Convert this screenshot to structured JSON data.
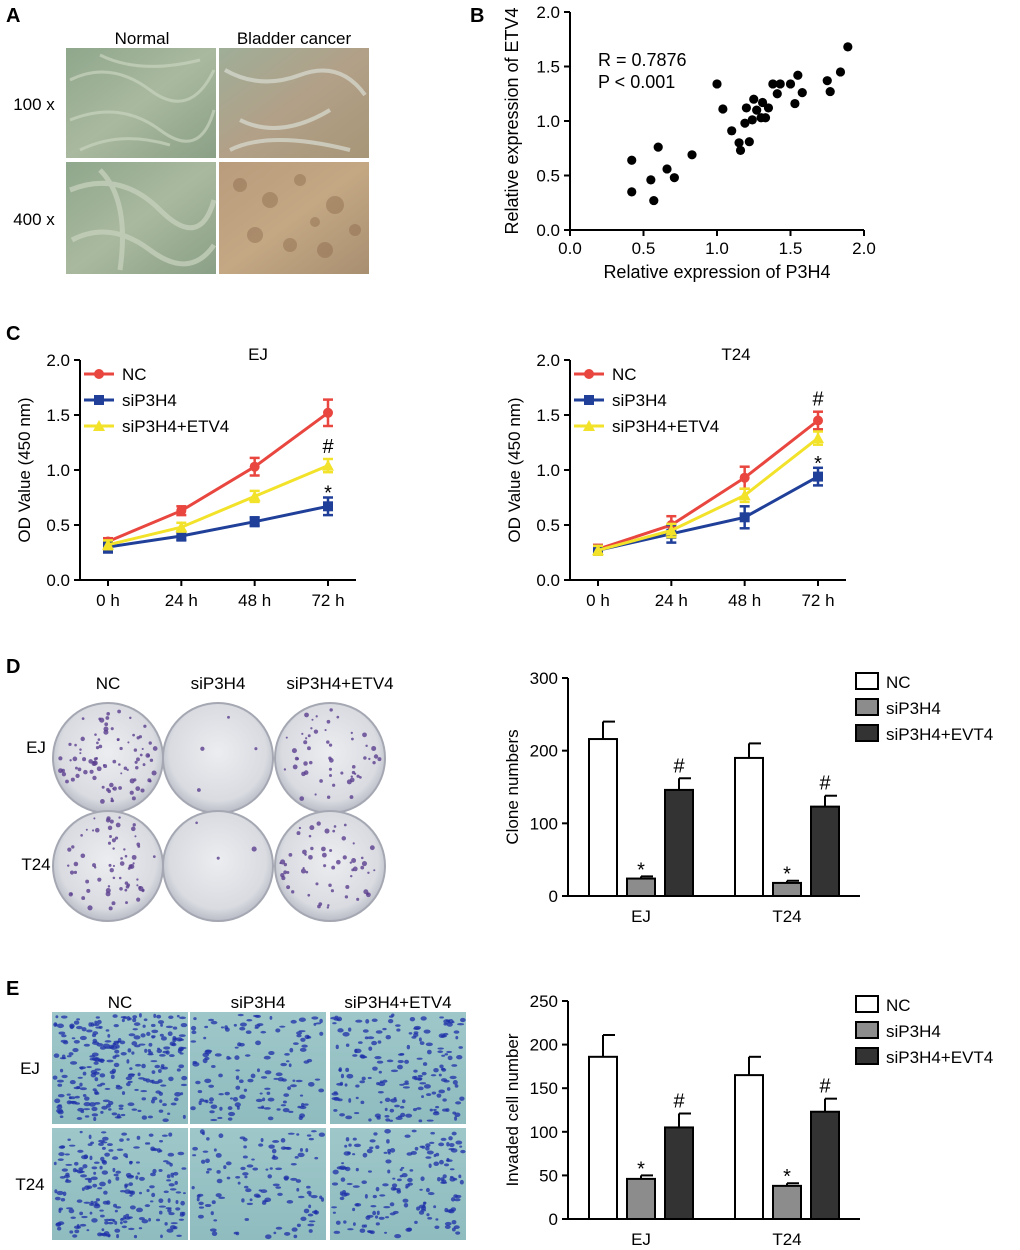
{
  "panel_labels": {
    "A": "A",
    "B": "B",
    "C": "C",
    "D": "D",
    "E": "E"
  },
  "panelA": {
    "col_labels": [
      "Normal",
      "Bladder cancer"
    ],
    "row_labels": [
      "100 x",
      "400 x"
    ]
  },
  "panelD_images": {
    "col_labels": [
      "NC",
      "siP3H4",
      "siP3H4+ETV4"
    ],
    "row_labels": [
      "EJ",
      "T24"
    ]
  },
  "panelE_images": {
    "col_labels": [
      "NC",
      "siP3H4",
      "siP3H4+ETV4"
    ],
    "row_labels": [
      "EJ",
      "T24"
    ]
  },
  "chart_data": [
    {
      "id": "B",
      "type": "scatter",
      "title": "",
      "xlabel": "Relative expression of P3H4",
      "ylabel": "Relative expression of ETV4",
      "xlim": [
        0,
        2.0
      ],
      "ylim": [
        0,
        2.0
      ],
      "xticks": [
        "0.0",
        "0.5",
        "1.0",
        "1.5",
        "2.0"
      ],
      "yticks": [
        "0.0",
        "0.5",
        "1.0",
        "1.5",
        "2.0"
      ],
      "annotations": [
        "R = 0.7876",
        "P < 0.001"
      ],
      "points": [
        [
          0.42,
          0.64
        ],
        [
          0.42,
          0.35
        ],
        [
          0.55,
          0.46
        ],
        [
          0.57,
          0.27
        ],
        [
          0.6,
          0.76
        ],
        [
          0.66,
          0.56
        ],
        [
          0.71,
          0.48
        ],
        [
          0.83,
          0.69
        ],
        [
          1.0,
          1.34
        ],
        [
          1.04,
          1.11
        ],
        [
          1.1,
          0.91
        ],
        [
          1.15,
          0.8
        ],
        [
          1.16,
          0.73
        ],
        [
          1.19,
          0.98
        ],
        [
          1.2,
          1.12
        ],
        [
          1.22,
          0.81
        ],
        [
          1.24,
          1.01
        ],
        [
          1.25,
          1.2
        ],
        [
          1.27,
          1.1
        ],
        [
          1.3,
          1.03
        ],
        [
          1.31,
          1.17
        ],
        [
          1.33,
          1.03
        ],
        [
          1.35,
          1.12
        ],
        [
          1.38,
          1.34
        ],
        [
          1.41,
          1.25
        ],
        [
          1.43,
          1.34
        ],
        [
          1.5,
          1.34
        ],
        [
          1.53,
          1.16
        ],
        [
          1.55,
          1.42
        ],
        [
          1.58,
          1.26
        ],
        [
          1.75,
          1.37
        ],
        [
          1.77,
          1.27
        ],
        [
          1.84,
          1.45
        ],
        [
          1.89,
          1.68
        ]
      ]
    },
    {
      "id": "C-EJ",
      "type": "line",
      "title": "EJ",
      "xlabel": "",
      "ylabel": "OD Value (450 nm)",
      "categories": [
        "0 h",
        "24 h",
        "48 h",
        "72 h"
      ],
      "ylim": [
        0,
        2.0
      ],
      "yticks": [
        "0.0",
        "0.5",
        "1.0",
        "1.5",
        "2.0"
      ],
      "series": [
        {
          "name": "NC",
          "color": "#e8463f",
          "values": [
            0.35,
            0.63,
            1.03,
            1.52
          ],
          "errors": [
            0.03,
            0.04,
            0.08,
            0.12
          ],
          "marker": "circle",
          "annot": ""
        },
        {
          "name": "siP3H4",
          "color": "#1f3f99",
          "values": [
            0.3,
            0.4,
            0.53,
            0.67
          ],
          "errors": [
            0.05,
            0.04,
            0.04,
            0.08
          ],
          "marker": "square",
          "annot": "*"
        },
        {
          "name": "siP3H4+ETV4",
          "color": "#f2e22a",
          "values": [
            0.32,
            0.48,
            0.76,
            1.04
          ],
          "errors": [
            0.04,
            0.04,
            0.05,
            0.06
          ],
          "marker": "triangle",
          "annot": "#"
        }
      ]
    },
    {
      "id": "C-T24",
      "type": "line",
      "title": "T24",
      "xlabel": "",
      "ylabel": "OD Value (450 nm)",
      "categories": [
        "0 h",
        "24 h",
        "48 h",
        "72 h"
      ],
      "ylim": [
        0,
        2.0
      ],
      "yticks": [
        "0.0",
        "0.5",
        "1.0",
        "1.5",
        "2.0"
      ],
      "series": [
        {
          "name": "NC",
          "color": "#e8463f",
          "values": [
            0.28,
            0.5,
            0.93,
            1.45
          ],
          "errors": [
            0.04,
            0.08,
            0.1,
            0.08
          ],
          "marker": "circle",
          "annot": "#"
        },
        {
          "name": "siP3H4",
          "color": "#1f3f99",
          "values": [
            0.27,
            0.42,
            0.57,
            0.94
          ],
          "errors": [
            0.04,
            0.08,
            0.1,
            0.08
          ],
          "marker": "square",
          "annot": "*"
        },
        {
          "name": "siP3H4+ETV4",
          "color": "#f2e22a",
          "values": [
            0.27,
            0.45,
            0.77,
            1.29
          ],
          "errors": [
            0.04,
            0.06,
            0.06,
            0.06
          ],
          "marker": "triangle",
          "annot": ""
        }
      ]
    },
    {
      "id": "D",
      "type": "bar",
      "title": "",
      "xlabel": "",
      "ylabel": "Clone numbers",
      "categories": [
        "EJ",
        "T24"
      ],
      "ylim": [
        0,
        300
      ],
      "yticks": [
        "0",
        "100",
        "200",
        "300"
      ],
      "series": [
        {
          "name": "NC",
          "color": "#ffffff",
          "values": [
            216,
            190
          ],
          "errors": [
            24,
            20
          ],
          "annot": [
            "",
            ""
          ]
        },
        {
          "name": "siP3H4",
          "color": "#8c8c8c",
          "values": [
            24,
            18
          ],
          "errors": [
            3,
            3
          ],
          "annot": [
            "*",
            "*"
          ]
        },
        {
          "name": "siP3H4+EVT4",
          "color": "#333333",
          "values": [
            146,
            123
          ],
          "errors": [
            16,
            15
          ],
          "annot": [
            "#",
            "#"
          ]
        }
      ]
    },
    {
      "id": "E",
      "type": "bar",
      "title": "",
      "xlabel": "",
      "ylabel": "Invaded cell number",
      "categories": [
        "EJ",
        "T24"
      ],
      "ylim": [
        0,
        250
      ],
      "yticks": [
        "0",
        "50",
        "100",
        "150",
        "200",
        "250"
      ],
      "series": [
        {
          "name": "NC",
          "color": "#ffffff",
          "values": [
            186,
            165
          ],
          "errors": [
            25,
            21
          ],
          "annot": [
            "",
            ""
          ]
        },
        {
          "name": "siP3H4",
          "color": "#8c8c8c",
          "values": [
            46,
            38
          ],
          "errors": [
            4,
            3
          ],
          "annot": [
            "*",
            "*"
          ]
        },
        {
          "name": "siP3H4+EVT4",
          "color": "#333333",
          "values": [
            105,
            123
          ],
          "errors": [
            16,
            15
          ],
          "annot": [
            "#",
            "#"
          ]
        }
      ]
    }
  ]
}
